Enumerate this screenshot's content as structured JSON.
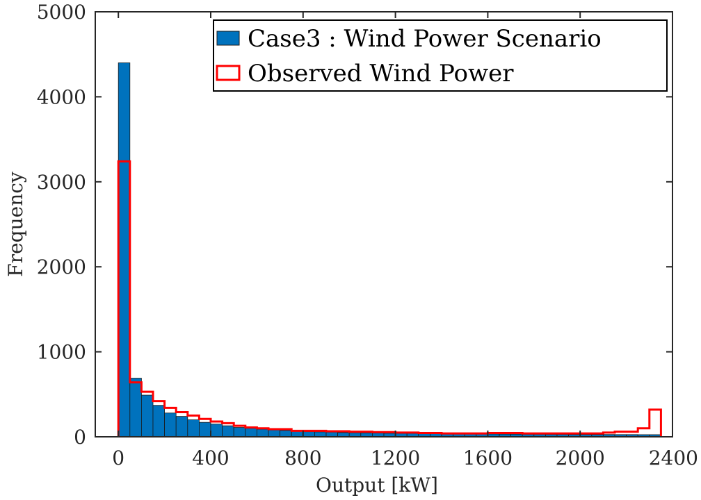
{
  "chart_data": {
    "type": "bar",
    "xlabel": "Output [kW]",
    "ylabel": "Frequency",
    "xlim": [
      -100,
      2400
    ],
    "ylim": [
      0,
      5000
    ],
    "xticks": [
      0,
      400,
      800,
      1200,
      1600,
      2000,
      2400
    ],
    "yticks": [
      0,
      1000,
      2000,
      3000,
      4000,
      5000
    ],
    "grid": false,
    "legend_position": "top-right",
    "bin_width": 50,
    "bin_starts": [
      0,
      50,
      100,
      150,
      200,
      250,
      300,
      350,
      400,
      450,
      500,
      550,
      600,
      650,
      700,
      750,
      800,
      850,
      900,
      950,
      1000,
      1050,
      1100,
      1150,
      1200,
      1250,
      1300,
      1350,
      1400,
      1450,
      1500,
      1550,
      1600,
      1650,
      1700,
      1750,
      1800,
      1850,
      1900,
      1950,
      2000,
      2050,
      2100,
      2150,
      2200,
      2250,
      2300
    ],
    "series": [
      {
        "name": "Case3 : Wind Power Scenario",
        "style": "filled-bars",
        "color": "#0072bd",
        "values": [
          4400,
          690,
          490,
          370,
          280,
          240,
          200,
          170,
          150,
          130,
          110,
          100,
          90,
          80,
          75,
          70,
          60,
          58,
          55,
          50,
          48,
          46,
          44,
          42,
          40,
          40,
          38,
          38,
          36,
          35,
          34,
          33,
          33,
          32,
          31,
          30,
          30,
          29,
          29,
          28,
          28,
          27,
          27,
          26,
          26,
          25,
          25
        ]
      },
      {
        "name": "Observed Wind Power",
        "style": "stairs-outline",
        "color": "#ff0000",
        "values": [
          3240,
          640,
          530,
          420,
          340,
          290,
          250,
          210,
          180,
          160,
          130,
          110,
          100,
          90,
          90,
          70,
          70,
          70,
          65,
          65,
          60,
          60,
          55,
          55,
          50,
          50,
          45,
          45,
          40,
          40,
          40,
          40,
          45,
          45,
          45,
          40,
          40,
          40,
          40,
          40,
          40,
          40,
          50,
          60,
          60,
          100,
          320
        ]
      }
    ]
  }
}
